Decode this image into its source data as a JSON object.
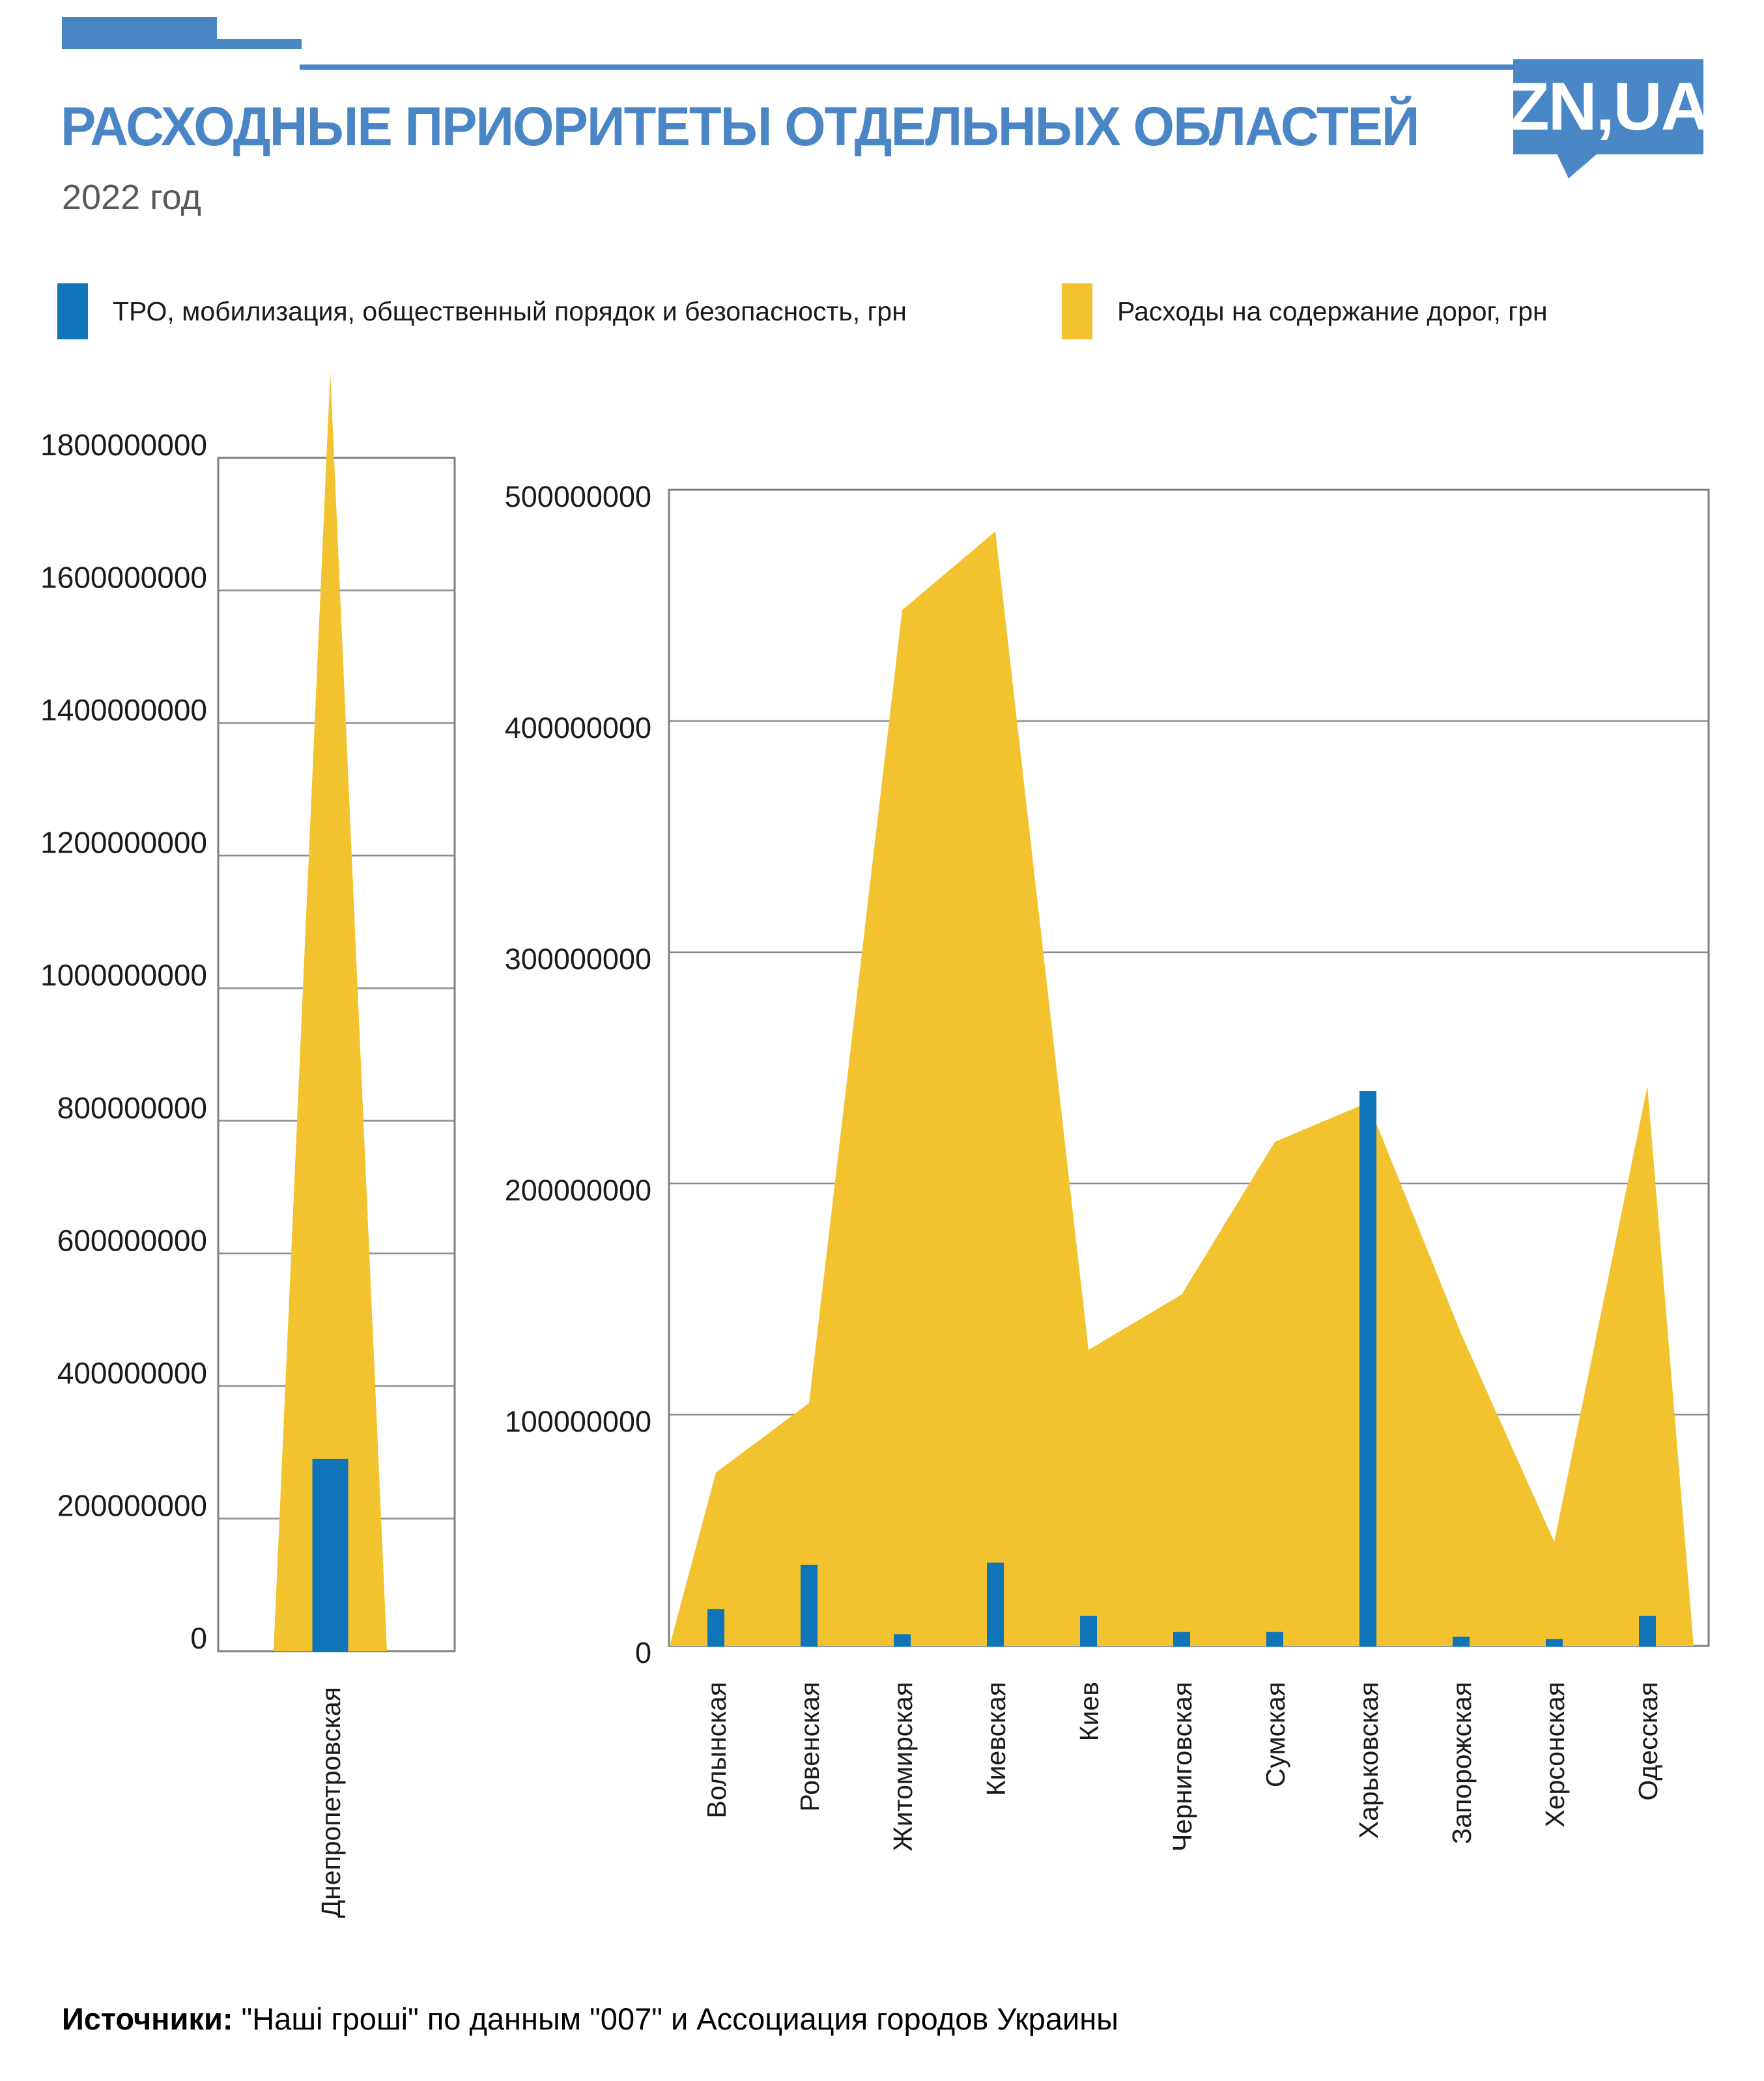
{
  "header": {
    "title": "РАСХОДНЫЕ ПРИОРИТЕТЫ ОТДЕЛЬНЫХ ОБЛАСТЕЙ",
    "subtitle": "2022 год",
    "logo_text": "ZN,UA",
    "accent_color": "#4a86c5"
  },
  "legend": {
    "items": [
      {
        "label": "ТРО, мобилизация, общественный порядок и безопасность, грн",
        "color": "#0f74b8"
      },
      {
        "label": "Расходы на содержание дорог, грн",
        "color": "#f2c22f"
      }
    ]
  },
  "source": {
    "prefix": "Источники:",
    "text": " \"Наші гроші\" по данным \"007\" и Ассоциация городов Украины"
  },
  "colors": {
    "tro_blue": "#0f74b8",
    "roads_yellow": "#f2c22f",
    "gridline": "#8e8e8e",
    "border": "#7f7f7f",
    "axis_text": "#1a1a1a"
  },
  "chart_data": [
    {
      "type": "area",
      "title": "",
      "categories": [
        "Днепропетровская"
      ],
      "series": [
        {
          "name": "Расходы на содержание дорог, грн",
          "render": "area",
          "color": "#f2c22f",
          "values": [
            1930000000
          ]
        },
        {
          "name": "ТРО, мобилизация, общественный порядок и безопасность, грн",
          "render": "bar",
          "color": "#0f74b8",
          "values": [
            290000000
          ]
        }
      ],
      "xlabel": "",
      "ylabel": "",
      "ylim": [
        0,
        1800000000
      ],
      "yticks": [
        0,
        200000000,
        400000000,
        600000000,
        800000000,
        1000000000,
        1200000000,
        1400000000,
        1600000000,
        1800000000
      ],
      "grid": true,
      "legend_position": "top",
      "note": "yellow area peak overflows above plot top"
    },
    {
      "type": "area",
      "title": "",
      "categories": [
        "Волынская",
        "Ровенская",
        "Житомирская",
        "Киевская",
        "Киев",
        "Черниговская",
        "Сумская",
        "Харьковская",
        "Запорожская",
        "Херсонская",
        "Одесская"
      ],
      "series": [
        {
          "name": "Расходы на содержание дорог, грн",
          "render": "area",
          "color": "#f2c22f",
          "values": [
            75000000,
            105000000,
            448000000,
            482000000,
            128000000,
            152000000,
            218000000,
            235000000,
            135000000,
            45000000,
            242000000
          ]
        },
        {
          "name": "ТРО, мобилизация, общественный порядок и безопасность, грн",
          "render": "bar",
          "color": "#0f74b8",
          "values": [
            16000000,
            35000000,
            5000000,
            36000000,
            13000000,
            6000000,
            6000000,
            240000000,
            4000000,
            3000000,
            13000000
          ]
        }
      ],
      "xlabel": "",
      "ylabel": "",
      "ylim": [
        0,
        500000000
      ],
      "yticks": [
        0,
        100000000,
        200000000,
        300000000,
        400000000,
        500000000
      ],
      "grid": true,
      "legend_position": "top"
    }
  ]
}
